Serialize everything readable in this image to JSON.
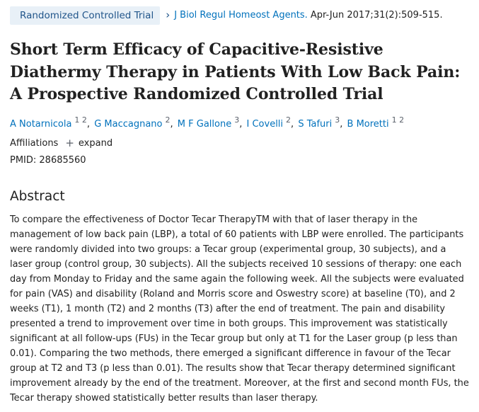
{
  "publication_type": "Randomized Controlled Trial",
  "citation": {
    "journal": "J Biol Regul Homeost Agents.",
    "details": "Apr-Jun 2017;31(2):509-515."
  },
  "title": "Short Term Efficacy of Capacitive-Resistive Diathermy Therapy in Patients With Low Back Pain: A Prospective Randomized Controlled Trial",
  "authors": [
    {
      "name": "A Notarnicola",
      "affs": "1 2"
    },
    {
      "name": "G Maccagnano",
      "affs": "2"
    },
    {
      "name": "M F Gallone",
      "affs": "3"
    },
    {
      "name": "I Covelli",
      "affs": "2"
    },
    {
      "name": "S Tafuri",
      "affs": "3"
    },
    {
      "name": "B Moretti",
      "affs": "1 2"
    }
  ],
  "affiliations": {
    "label": "Affiliations",
    "expand_label": "expand"
  },
  "pmid": "PMID: 28685560",
  "abstract": {
    "heading": "Abstract",
    "text": "To compare the effectiveness of Doctor Tecar TherapyTM with that of laser therapy in the management of low back pain (LBP), a total of 60 patients with LBP were enrolled. The participants were randomly divided into two groups: a Tecar group (experimental group, 30 subjects), and a laser group (control group, 30 subjects). All the subjects received 10 sessions of therapy: one each day from Monday to Friday and the same again the following week. All the subjects were evaluated for pain (VAS) and disability (Roland and Morris score and Oswestry score) at baseline (T0), and 2 weeks (T1), 1 month (T2) and 2 months (T3) after the end of treatment. The pain and disability presented a trend to improvement over time in both groups. This improvement was statistically significant at all follow-ups (FUs) in the Tecar group but only at T1 for the Laser group (p less than 0.01). Comparing the two methods, there emerged a significant difference in favour of the Tecar group at T2 and T3 (p less than 0.01). The results show that Tecar therapy determined significant improvement already by the end of the treatment. Moreover, at the first and second month FUs, the Tecar therapy showed statistically better results than laser therapy."
  },
  "colors": {
    "link": "#0071bc",
    "badge_bg": "#e8f0f7",
    "badge_text": "#20558a",
    "text": "#212121"
  }
}
